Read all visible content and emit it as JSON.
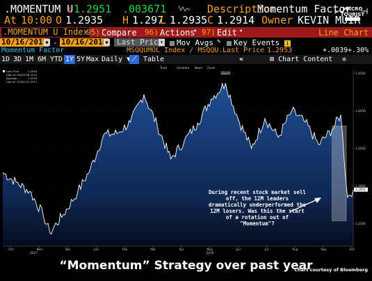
{
  "header": {
    "ticker": ".MOMENTUM U",
    "arrow": "↓",
    "last": "1.2951",
    "change": ".003671",
    "desc_label": "Description",
    "desc_value": "Momentum Factor",
    "time_label": "At",
    "time": "10:00",
    "o_label": "O",
    "open": "1.2935",
    "h_label": "H",
    "high": "1.297",
    "l_label": "L",
    "low": "1.2935",
    "c_label": "C",
    "close": "1.2914",
    "owner_label": "Owner",
    "owner": "KEVIN MUIR"
  },
  "logo": {
    "line1": "MACRO",
    "line2": "TOURIST"
  },
  "menu": {
    "index_label": ".MOMENTUM U Index",
    "compare_num": "95)",
    "compare_label": "Compare",
    "actions_num": "96)",
    "actions_label": "Actions",
    "edit_num": "97)",
    "edit_label": "Edit",
    "view_label": "Line Chart"
  },
  "controls": {
    "start_date": "10/16/2017",
    "end_date": "10/16/2018",
    "field": "Last Price",
    "mov_avgs": "Mov Avgs",
    "key_events": "Key Events",
    "sep": "-"
  },
  "series_row": {
    "name": "Momentum Factor",
    "path": "MSQQUMOL Index / MSQQU..",
    "last_label": "Last Price",
    "last_val": "1.2953",
    "chg": "+.0039",
    "pct": "+.30%"
  },
  "toolbar": {
    "periods": [
      "1D",
      "3D",
      "1M",
      "6M",
      "YTD",
      "1Y",
      "5Y",
      "Max"
    ],
    "active_period": "1Y",
    "frequency": "Daily",
    "table": "Table",
    "collapse": "«",
    "chart_content": "Chart Content",
    "settings": "✲"
  },
  "chart_toolbar": {
    "track": "Track",
    "annotate": "Annotate",
    "news": "News",
    "zoom": "Zoom",
    "reset": "Reset"
  },
  "legend": {
    "l1": "Last Price",
    "v1": "1.2953",
    "l2": "High on 06/05/18",
    "v2": "1.4374",
    "l3": "Average",
    "v3": "1.3376",
    "l4": "Low on 12/04/17",
    "v4": "1.2317"
  },
  "annotation": "During recent stock market sell off, the 12M leaders dramatically underperformed the 12M losers. Was this the start of a rotation out of \"Momentum\"?",
  "caption": "“Momentum” Strategy over past year",
  "courtesy": "Chart courtesy of Bloomberg",
  "colors": {
    "amber": "#f6a01a",
    "red": "#e33b2f",
    "green": "#19d64c",
    "bar_red": "#9c1a1a",
    "area_top": "#1f4e96",
    "line": "#ffffff"
  },
  "chart_data": {
    "type": "area",
    "title": "",
    "xlabel": "",
    "ylabel": "",
    "x_ticks": [
      "Oct",
      "Nov",
      "Dec",
      "Jan",
      "Feb",
      "Mar",
      "Apr",
      "May",
      "Jun",
      "Jul",
      "Aug",
      "Sep",
      "Oct"
    ],
    "year_labels": [
      "2017",
      "2018"
    ],
    "y_ticks": [
      "1.2500",
      "1.3000",
      "1.3500",
      "1.4000",
      "1.4500"
    ],
    "ylim": [
      1.22,
      1.455
    ],
    "last_value_label": "1.2953",
    "x": [
      "2017-10-16",
      "2017-10-30",
      "2017-11-13",
      "2017-11-27",
      "2017-12-04",
      "2017-12-18",
      "2018-01-02",
      "2018-01-15",
      "2018-01-29",
      "2018-02-12",
      "2018-02-26",
      "2018-03-12",
      "2018-03-26",
      "2018-04-09",
      "2018-04-23",
      "2018-05-07",
      "2018-05-21",
      "2018-06-05",
      "2018-06-18",
      "2018-07-02",
      "2018-07-16",
      "2018-07-30",
      "2018-08-13",
      "2018-08-27",
      "2018-09-10",
      "2018-09-24",
      "2018-10-03",
      "2018-10-10",
      "2018-10-16"
    ],
    "series": [
      {
        "values": [
          1.318,
          1.305,
          1.293,
          1.262,
          1.238,
          1.262,
          1.292,
          1.322,
          1.368,
          1.37,
          1.385,
          1.422,
          1.38,
          1.336,
          1.36,
          1.384,
          1.416,
          1.437,
          1.39,
          1.35,
          1.39,
          1.365,
          1.4,
          1.385,
          1.355,
          1.375,
          1.395,
          1.285,
          1.2953
        ]
      }
    ]
  }
}
